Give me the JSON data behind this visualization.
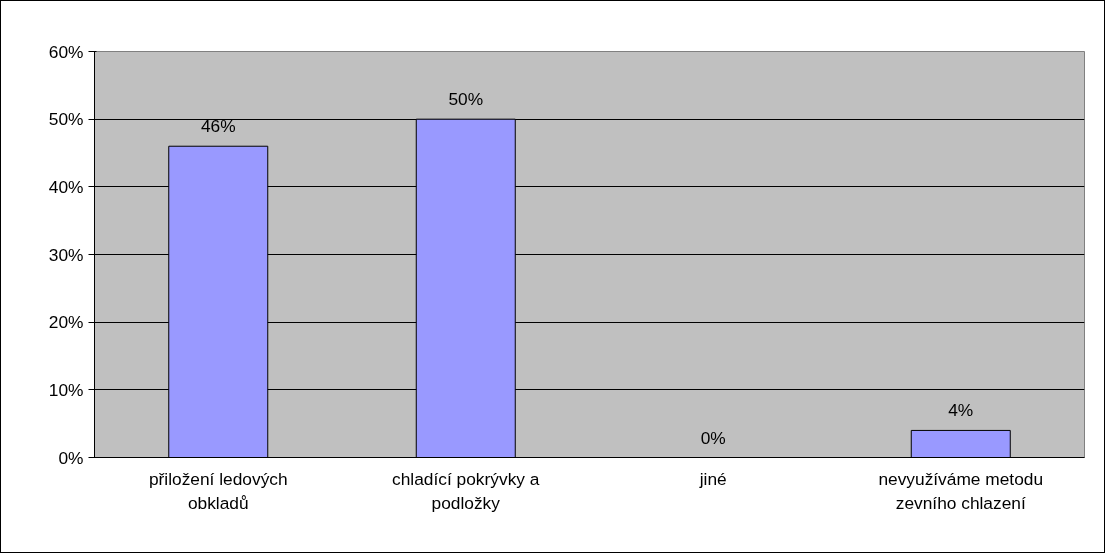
{
  "chart_data": {
    "type": "bar",
    "categories": [
      "přiložení ledových\nobkladů",
      "chladící pokrývky a\npodložky",
      "jiné",
      "nevyužíváme metodu\nzevního chlazení"
    ],
    "values": [
      46,
      50,
      0,
      4
    ],
    "value_labels": [
      "46%",
      "50%",
      "0%",
      "4%"
    ],
    "color": "#9999ff",
    "ylim": [
      0,
      60
    ],
    "yticks": [
      {
        "value": 0,
        "label": "0%"
      },
      {
        "value": 10,
        "label": "10%"
      },
      {
        "value": 20,
        "label": "20%"
      },
      {
        "value": 30,
        "label": "30%"
      },
      {
        "value": 40,
        "label": "40%"
      },
      {
        "value": 50,
        "label": "50%"
      },
      {
        "value": 60,
        "label": "60%"
      }
    ],
    "grid": "y"
  }
}
